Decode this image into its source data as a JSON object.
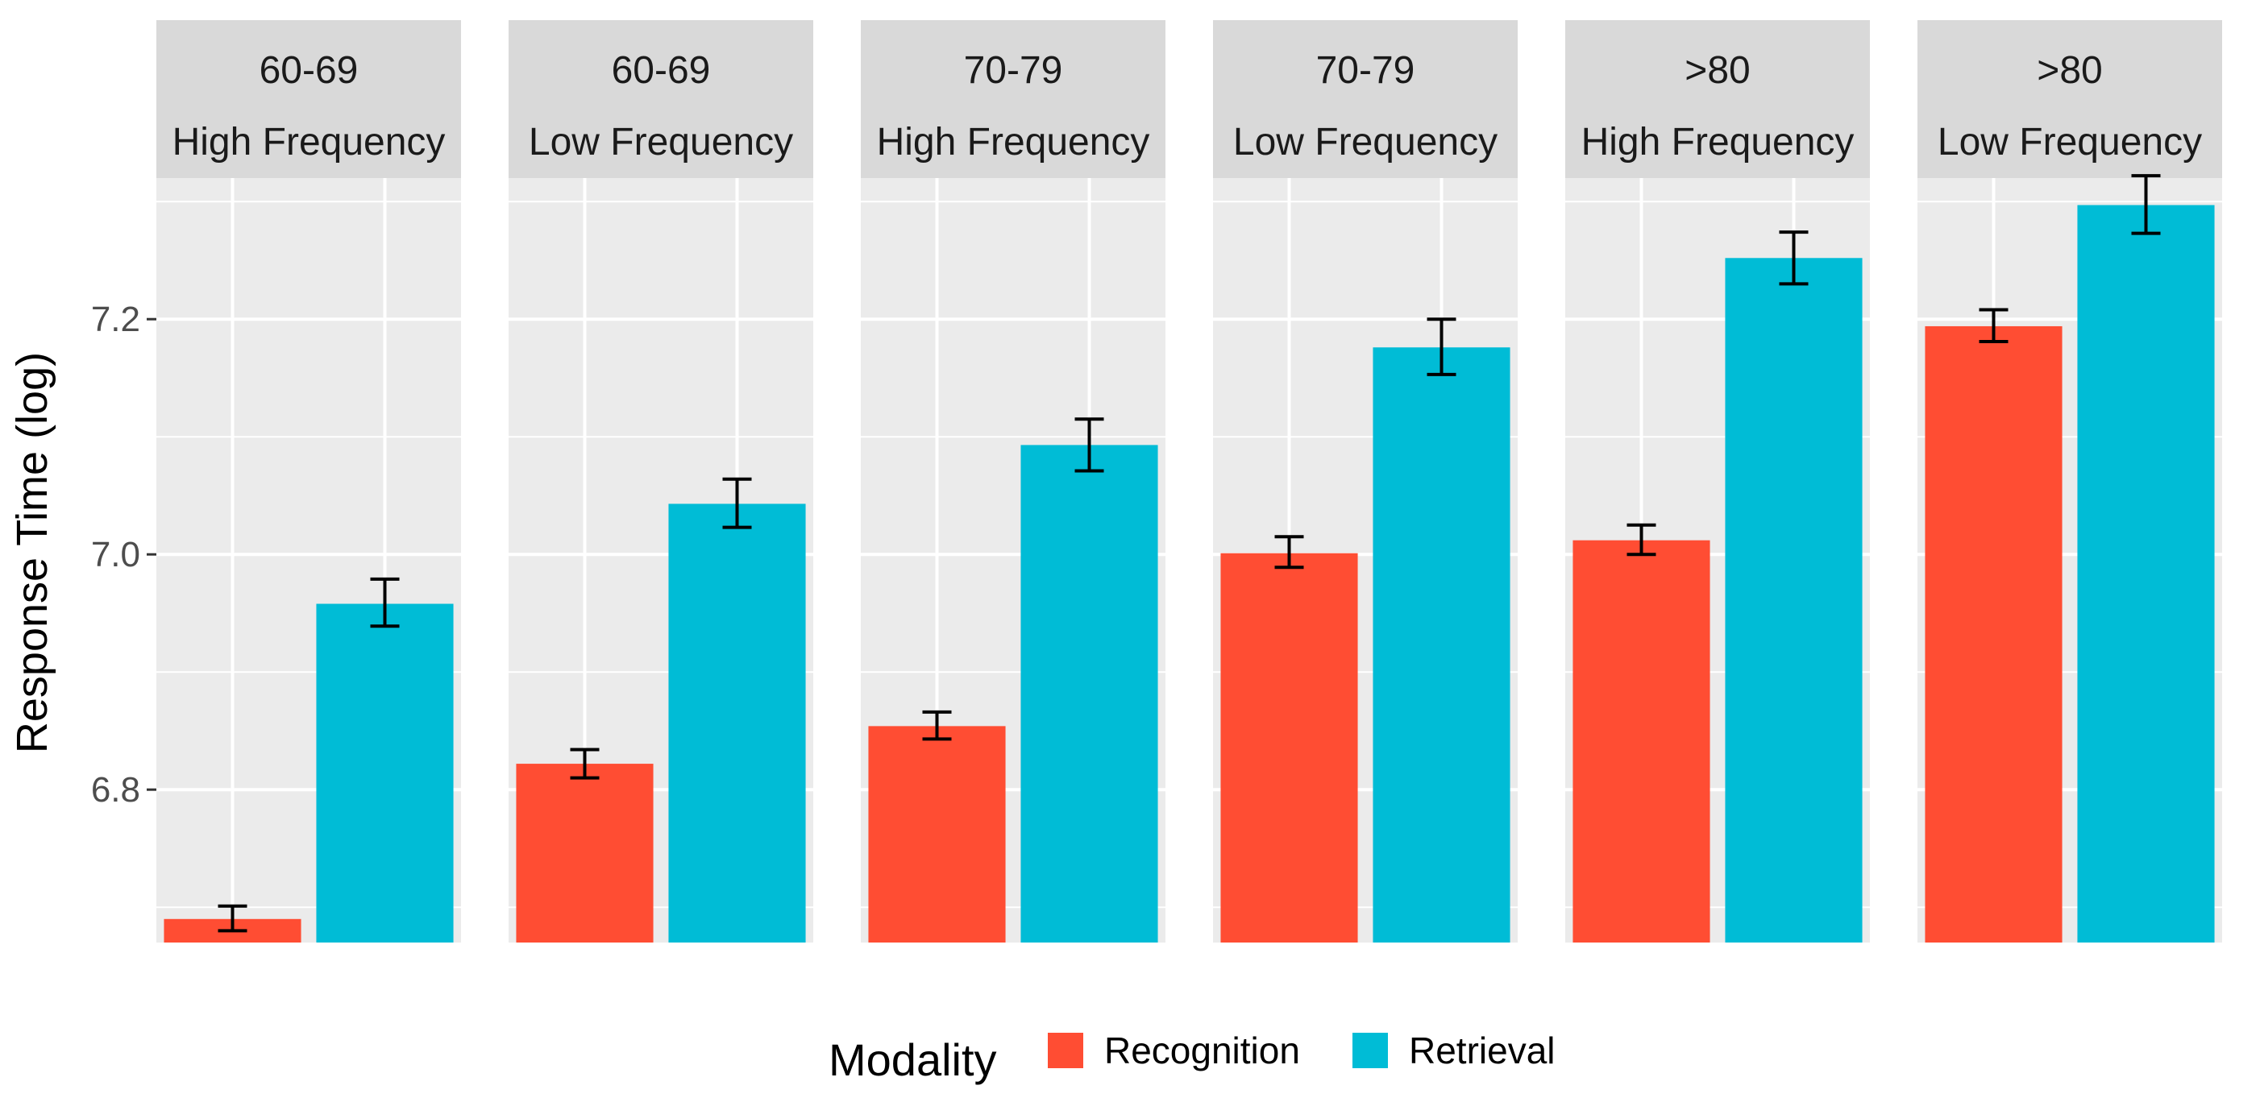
{
  "chart_data": {
    "type": "bar",
    "ylabel": "Response Time (log)",
    "ylim": [
      6.67,
      7.32
    ],
    "yticks": [
      6.8,
      7.0,
      7.2
    ],
    "ytick_labels": [
      "6.8",
      "7.0",
      "7.2"
    ],
    "legend": {
      "title": "Modality",
      "position": "bottom",
      "entries": [
        {
          "name": "Recognition",
          "color": "#F8766D"
        },
        {
          "name": "Retrieval",
          "color": "#00BFC4"
        }
      ]
    },
    "colors": {
      "Recognition": "#FF4D33",
      "Retrieval": "#00BCD6",
      "panel_bg": "#EBEBEB",
      "strip_bg": "#D9D9D9",
      "grid": "#FFFFFF"
    },
    "panels": [
      {
        "age": "60-69",
        "frequency": "High Frequency",
        "bars": [
          {
            "series": "Recognition",
            "value": 6.69,
            "err_low": 6.68,
            "err_high": 6.701
          },
          {
            "series": "Retrieval",
            "value": 6.958,
            "err_low": 6.939,
            "err_high": 6.979
          }
        ]
      },
      {
        "age": "60-69",
        "frequency": "Low Frequency",
        "bars": [
          {
            "series": "Recognition",
            "value": 6.822,
            "err_low": 6.81,
            "err_high": 6.834
          },
          {
            "series": "Retrieval",
            "value": 7.043,
            "err_low": 7.023,
            "err_high": 7.064
          }
        ]
      },
      {
        "age": "70-79",
        "frequency": "High Frequency",
        "bars": [
          {
            "series": "Recognition",
            "value": 6.854,
            "err_low": 6.843,
            "err_high": 6.866
          },
          {
            "series": "Retrieval",
            "value": 7.093,
            "err_low": 7.071,
            "err_high": 7.115
          }
        ]
      },
      {
        "age": "70-79",
        "frequency": "Low Frequency",
        "bars": [
          {
            "series": "Recognition",
            "value": 7.001,
            "err_low": 6.989,
            "err_high": 7.015
          },
          {
            "series": "Retrieval",
            "value": 7.176,
            "err_low": 7.153,
            "err_high": 7.2
          }
        ]
      },
      {
        "age": ">80",
        "frequency": "High Frequency",
        "bars": [
          {
            "series": "Recognition",
            "value": 7.012,
            "err_low": 7.0,
            "err_high": 7.025
          },
          {
            "series": "Retrieval",
            "value": 7.252,
            "err_low": 7.23,
            "err_high": 7.274
          }
        ]
      },
      {
        "age": ">80",
        "frequency": "Low Frequency",
        "bars": [
          {
            "series": "Recognition",
            "value": 7.194,
            "err_low": 7.181,
            "err_high": 7.208
          },
          {
            "series": "Retrieval",
            "value": 7.297,
            "err_low": 7.273,
            "err_high": 7.322
          }
        ]
      }
    ]
  }
}
